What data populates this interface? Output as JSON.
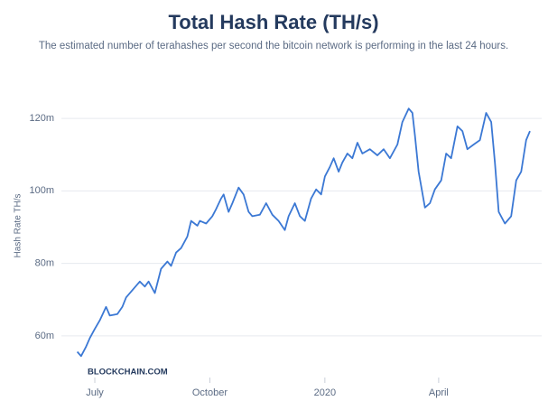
{
  "chart_data": {
    "type": "line",
    "title": "Total Hash Rate (TH/s)",
    "subtitle": "The estimated number of terahashes per second the bitcoin network is performing in the last 24 hours.",
    "ylabel": "Hash Rate TH/s",
    "watermark": "BLOCKCHAIN.COM",
    "grid": true,
    "xlim": [
      -18,
      354
    ],
    "ylim": [
      50,
      125
    ],
    "xticks": [
      {
        "value": 0,
        "label": "July"
      },
      {
        "value": 92,
        "label": "October"
      },
      {
        "value": 184,
        "label": "2020"
      },
      {
        "value": 275,
        "label": "April"
      }
    ],
    "yticks": [
      {
        "value": 60,
        "label": "60m"
      },
      {
        "value": 80,
        "label": "80m"
      },
      {
        "value": 100,
        "label": "100m"
      },
      {
        "value": 120,
        "label": "120m"
      }
    ],
    "series": [
      {
        "name": "Hash Rate",
        "color": "#3b78d4",
        "x": [
          -14,
          -11,
          -7,
          -4,
          0,
          4,
          9,
          12,
          18,
          22,
          25,
          31,
          36,
          40,
          43,
          48,
          53,
          58,
          61,
          65,
          69,
          74,
          77,
          82,
          84,
          89,
          94,
          97,
          101,
          103,
          107,
          110,
          115,
          119,
          123,
          126,
          132,
          137,
          142,
          147,
          152,
          155,
          160,
          164,
          168,
          173,
          177,
          181,
          184,
          188,
          191,
          195,
          198,
          202,
          206,
          210,
          214,
          220,
          226,
          231,
          236,
          242,
          246,
          251,
          254,
          256,
          259,
          264,
          268,
          272,
          277,
          281,
          285,
          290,
          294,
          298,
          303,
          308,
          313,
          317,
          320,
          323,
          328,
          333,
          337,
          341,
          345,
          348
        ],
        "values": [
          55.6,
          54.4,
          57,
          59.4,
          61.9,
          64.3,
          68,
          65.6,
          66,
          68,
          70.6,
          73,
          75,
          73.6,
          75,
          71.8,
          78.5,
          80.5,
          79.3,
          83,
          84.2,
          87.4,
          91.7,
          90.4,
          91.7,
          91,
          93,
          95,
          97.9,
          99,
          94.2,
          96.6,
          100.9,
          99,
          94.2,
          93,
          93.4,
          96.6,
          93.4,
          91.7,
          89.2,
          93,
          96.6,
          93,
          91.7,
          97.9,
          100.4,
          99,
          104,
          106.6,
          109,
          105.3,
          107.8,
          110.3,
          109,
          113.3,
          110.3,
          111.5,
          109.8,
          111.5,
          109,
          112.8,
          119,
          122.7,
          121.5,
          115.3,
          105.3,
          95.4,
          96.6,
          100.4,
          102.9,
          110.3,
          109,
          117.8,
          116.5,
          111.5,
          112.8,
          114,
          121.5,
          119,
          107.8,
          94.2,
          91,
          93,
          102.9,
          105.3,
          114,
          116.5
        ]
      }
    ]
  }
}
